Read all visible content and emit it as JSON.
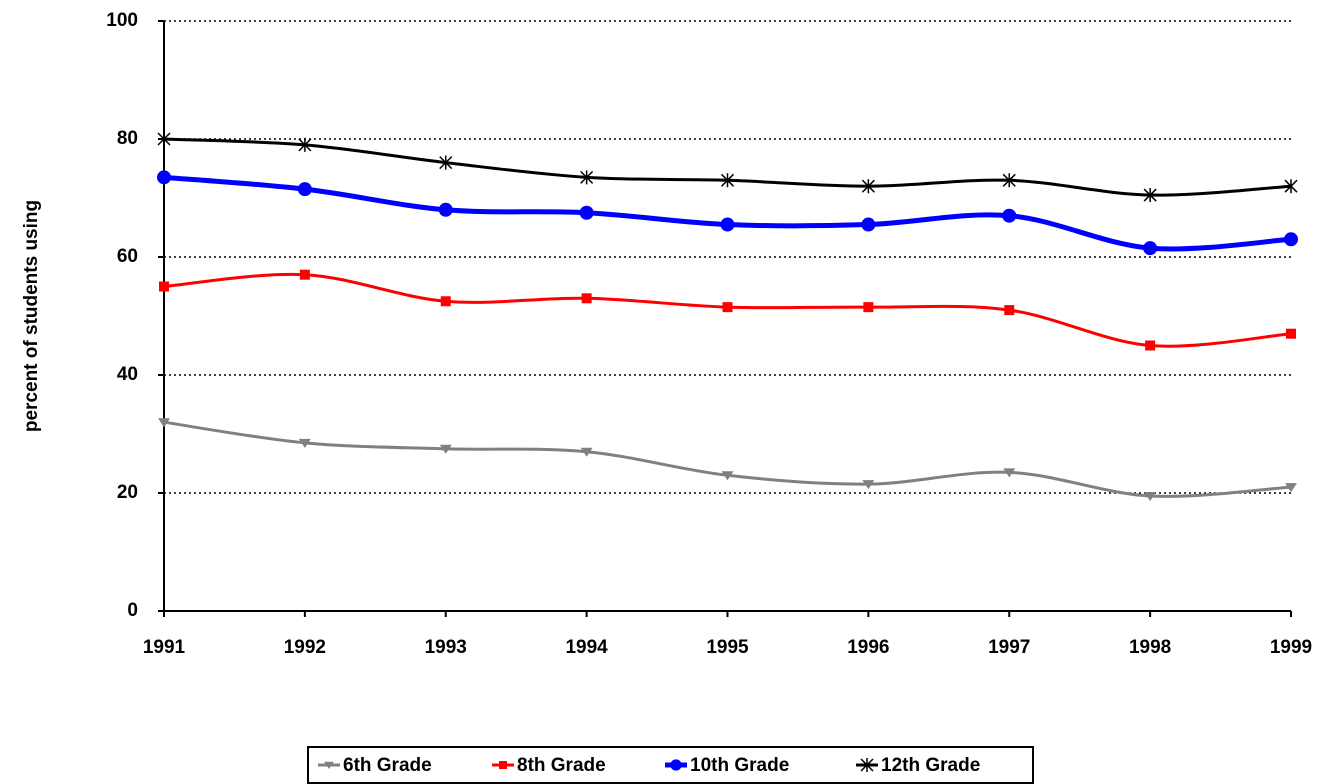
{
  "chart_data": {
    "type": "line",
    "y_label": "percent of students using",
    "categories": [
      "1991",
      "1992",
      "1993",
      "1994",
      "1995",
      "1996",
      "1997",
      "1998",
      "1999"
    ],
    "series": [
      {
        "name": "6th Grade",
        "color": "#808080",
        "marker": "triangle-down",
        "values": [
          32,
          28.5,
          27.5,
          27,
          23,
          21.5,
          23.5,
          19.5,
          21
        ]
      },
      {
        "name": "8th Grade",
        "color": "#ff0000",
        "marker": "square",
        "values": [
          55,
          57,
          52.5,
          53,
          51.5,
          51.5,
          51,
          45,
          47
        ]
      },
      {
        "name": "10th Grade",
        "color": "#0000ff",
        "marker": "circle",
        "values": [
          73.5,
          71.5,
          68,
          67.5,
          65.5,
          65.5,
          67,
          61.5,
          63
        ]
      },
      {
        "name": "12th Grade",
        "color": "#000000",
        "marker": "star",
        "values": [
          80,
          79,
          76,
          73.5,
          73,
          72,
          73,
          70.5,
          72
        ]
      }
    ],
    "ylim": [
      0,
      100
    ],
    "yticks": [
      0,
      20,
      40,
      60,
      80,
      100
    ],
    "grid": true,
    "legend": "bottom"
  }
}
